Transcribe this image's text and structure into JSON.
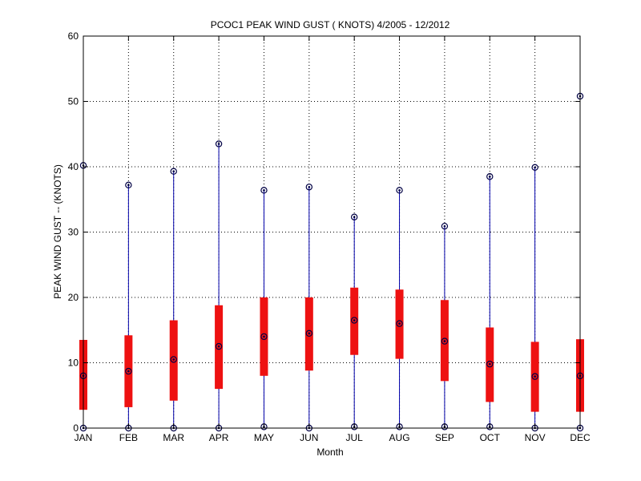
{
  "chart_data": {
    "type": "boxplot",
    "title": "PCOC1  PEAK WIND GUST ( KNOTS) 4/2005 - 12/2012",
    "xlabel": "Month",
    "ylabel": "PEAK WIND GUST -- (KNOTS)",
    "ylim": [
      0,
      60
    ],
    "yticks": [
      "0",
      "10",
      "20",
      "30",
      "40",
      "50",
      "60"
    ],
    "grid": true,
    "categories": [
      "JAN",
      "FEB",
      "MAR",
      "APR",
      "MAY",
      "JUN",
      "JUL",
      "AUG",
      "SEP",
      "OCT",
      "NOV",
      "DEC"
    ],
    "min": [
      0,
      0,
      0,
      0,
      0.2,
      0,
      0.2,
      0.2,
      0.2,
      0.2,
      0,
      0
    ],
    "q1": [
      2.8,
      3.2,
      4.2,
      6.0,
      8.0,
      8.8,
      11.2,
      10.6,
      7.2,
      4.0,
      2.5,
      2.5
    ],
    "median": [
      8.0,
      8.7,
      10.5,
      12.5,
      14.0,
      14.5,
      16.5,
      16.0,
      13.3,
      9.8,
      7.9,
      8.0
    ],
    "q3": [
      13.5,
      14.2,
      16.5,
      18.8,
      20.0,
      20.0,
      21.5,
      21.2,
      19.6,
      15.4,
      13.2,
      13.6
    ],
    "max": [
      40.2,
      37.2,
      39.3,
      43.5,
      36.4,
      36.9,
      32.3,
      36.4,
      30.9,
      38.5,
      39.9,
      50.8
    ],
    "colors": {
      "whisker": "#0000aa",
      "box": "#ee1111",
      "marker": "#000044",
      "grid": "#000000"
    }
  }
}
